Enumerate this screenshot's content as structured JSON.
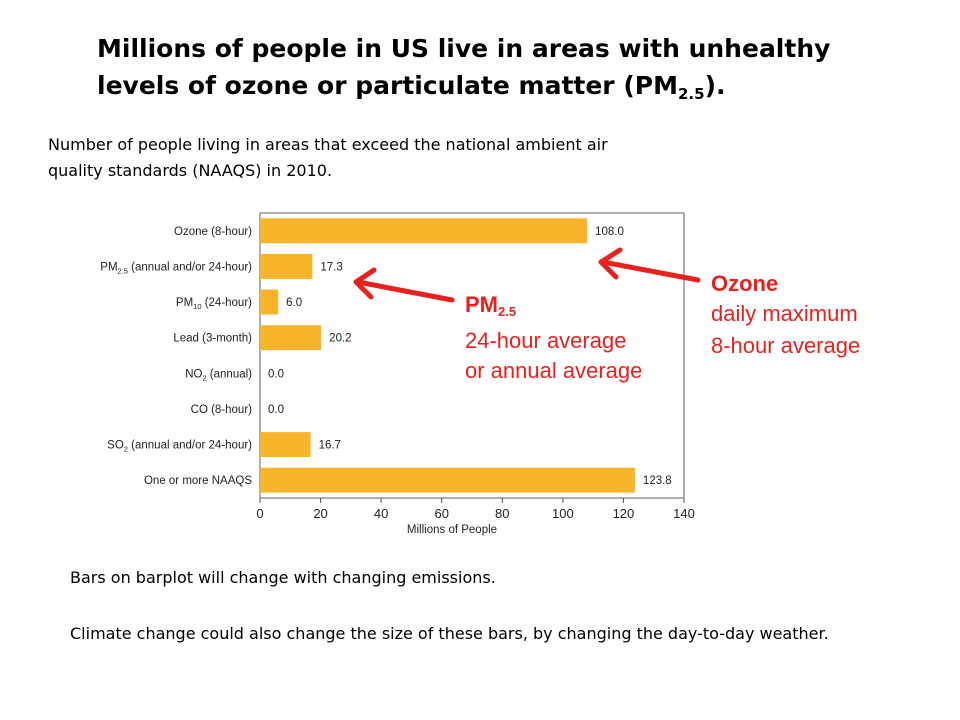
{
  "title": {
    "text": "Millions of people in US live in areas with unhealthy levels of ozone or particulate matter (PM",
    "sub": "2.5",
    "end": ")."
  },
  "subtitle": "Number of people living in areas that exceed the national ambient air quality standards (NAAQS) in 2010.",
  "notes": {
    "line1": "Bars on barplot will change with changing emissions.",
    "line2": "Climate change could also change the size of these bars, by changing the day-to-day weather."
  },
  "callouts": {
    "pm": {
      "head": "PM",
      "sub": "2.5",
      "line1": "24-hour average",
      "line2": "or annual average"
    },
    "ozone": {
      "head": "Ozone",
      "line1": "daily maximum",
      "line2": "8-hour average"
    }
  },
  "colors": {
    "bar": "#f7b52b",
    "callout": "#e8211e"
  },
  "chart_data": {
    "type": "bar",
    "orientation": "horizontal",
    "xlabel": "Millions of People",
    "xlim": [
      0,
      140
    ],
    "xticks": [
      0,
      20,
      40,
      60,
      80,
      100,
      120,
      140
    ],
    "categories": [
      {
        "label": "Ozone (8-hour)"
      },
      {
        "label": "PM",
        "sub": "2.5",
        "rest": " (annual and/or 24-hour)"
      },
      {
        "label": "PM",
        "sub": "10",
        "rest": " (24-hour)"
      },
      {
        "label": "Lead (3-month)"
      },
      {
        "label": "NO",
        "sub": "2",
        "rest": " (annual)"
      },
      {
        "label": "CO (8-hour)"
      },
      {
        "label": "SO",
        "sub": "2",
        "rest": " (annual and/or 24-hour)"
      },
      {
        "label": "One or more NAAQS"
      }
    ],
    "values": [
      108.0,
      17.3,
      6.0,
      20.2,
      0.0,
      0.0,
      16.7,
      123.8
    ],
    "value_labels": [
      "108.0",
      "17.3",
      "6.0",
      "20.2",
      "0.0",
      "0.0",
      "16.7",
      "123.8"
    ]
  }
}
